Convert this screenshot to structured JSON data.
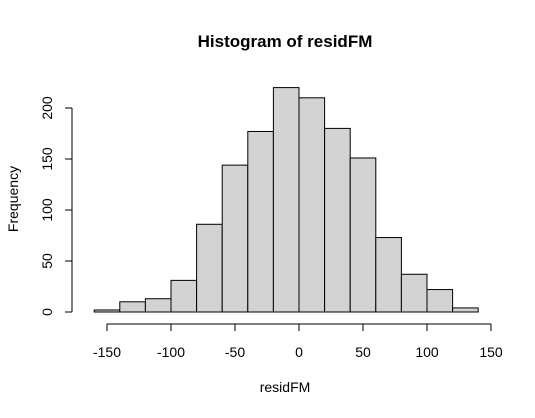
{
  "chart_data": {
    "type": "bar",
    "title": "Histogram of residFM",
    "xlabel": "residFM",
    "ylabel": "Frequency",
    "bins": [
      {
        "x0": -160,
        "x1": -140,
        "count": 2
      },
      {
        "x0": -140,
        "x1": -120,
        "count": 10
      },
      {
        "x0": -120,
        "x1": -100,
        "count": 13
      },
      {
        "x0": -100,
        "x1": -80,
        "count": 31
      },
      {
        "x0": -80,
        "x1": -60,
        "count": 86
      },
      {
        "x0": -60,
        "x1": -40,
        "count": 144
      },
      {
        "x0": -40,
        "x1": -20,
        "count": 177
      },
      {
        "x0": -20,
        "x1": 0,
        "count": 220
      },
      {
        "x0": 0,
        "x1": 20,
        "count": 210
      },
      {
        "x0": 20,
        "x1": 40,
        "count": 180
      },
      {
        "x0": 40,
        "x1": 60,
        "count": 151
      },
      {
        "x0": 60,
        "x1": 80,
        "count": 73
      },
      {
        "x0": 80,
        "x1": 100,
        "count": 37
      },
      {
        "x0": 100,
        "x1": 120,
        "count": 22
      },
      {
        "x0": 120,
        "x1": 140,
        "count": 4
      }
    ],
    "xlim": [
      -160,
      150
    ],
    "ylim": [
      0,
      220
    ],
    "xticks": [
      -150,
      -100,
      -50,
      0,
      50,
      100,
      150
    ],
    "yticks": [
      0,
      50,
      100,
      150,
      200
    ],
    "bar_color": "#d3d3d3",
    "edge_color": "#000000",
    "grid": false
  }
}
